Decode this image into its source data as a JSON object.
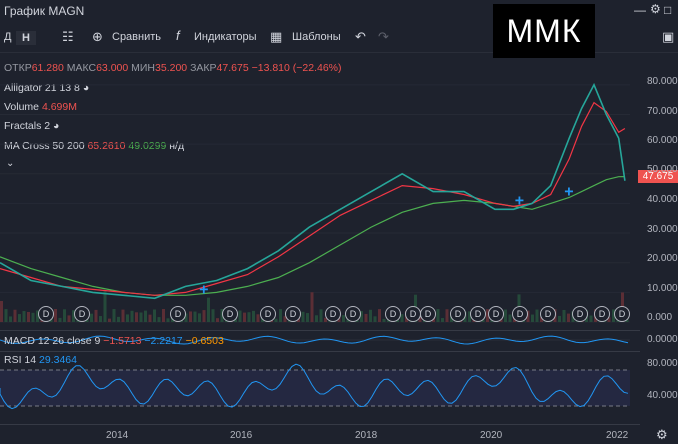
{
  "window": {
    "title": "График MAGN",
    "watermark": "ММК"
  },
  "toolbar": {
    "interval_day": "Д",
    "interval_hour": "Н",
    "compare": "Сравнить",
    "indicators": "Индикаторы",
    "templates": "Шаблоны"
  },
  "ohlc": {
    "open_label": "ОТКР",
    "open": "61.280",
    "high_label": "МАКС",
    "high": "63.000",
    "low_label": "МИН",
    "low": "35.200",
    "close_label": "ЗАКР",
    "close": "47.675",
    "change": "−13.810 (−22.46%)"
  },
  "indicators": {
    "alligator": "Alligator 21 13 8",
    "volume_label": "Volume",
    "volume": "4.699M",
    "fractals": "Fractals 2",
    "ma_cross": "MA Cross 50 200",
    "ma_fast": "65.2610",
    "ma_slow": "49.0299",
    "ma_na": "н/д",
    "macd_label": "MACD 12 26 close 9",
    "macd1": "−1.5713",
    "macd2": "−2.2217",
    "macd3": "−0.6503",
    "rsi_label": "RSI 14",
    "rsi": "29.3464"
  },
  "price_axis": {
    "current": "47.675",
    "ticks": [
      "80.000",
      "70.000",
      "60.000",
      "50.000",
      "40.000",
      "30.000",
      "20.000",
      "10.000",
      "0.000"
    ]
  },
  "macd_axis": {
    "tick": "0.0000"
  },
  "rsi_axis": {
    "ticks": [
      "80.0000",
      "40.0000"
    ]
  },
  "time_axis": {
    "ticks": [
      "2014",
      "2016",
      "2018",
      "2020",
      "2022"
    ]
  },
  "dividend_marker": "D",
  "colors": {
    "bg": "#1e222d",
    "up": "#4caf50",
    "down": "#ef5350",
    "ma_fast": "#f23645",
    "ma_slow": "#4caf50",
    "rsi": "#2196f3",
    "cross": "#2196f3"
  },
  "chart_data": {
    "type": "line",
    "title": "График MAGN",
    "x": [
      2012.0,
      2012.5,
      2013.0,
      2013.5,
      2014.0,
      2014.5,
      2015.0,
      2015.5,
      2016.0,
      2016.5,
      2017.0,
      2017.5,
      2018.0,
      2018.5,
      2019.0,
      2019.5,
      2020.0,
      2020.3,
      2020.6,
      2020.9,
      2021.2,
      2021.4,
      2021.6,
      2021.8,
      2022.0,
      2022.1
    ],
    "series": [
      {
        "name": "MAGN",
        "values": [
          20,
          14,
          12,
          10,
          9,
          8,
          12,
          14,
          18,
          24,
          32,
          38,
          44,
          50,
          44,
          44,
          38,
          38,
          40,
          46,
          62,
          72,
          80,
          70,
          62,
          47.675
        ]
      },
      {
        "name": "MA 50",
        "values": [
          18,
          15,
          12,
          11,
          10,
          9,
          10,
          13,
          16,
          22,
          29,
          36,
          41,
          46,
          45,
          43,
          40,
          39,
          40,
          43,
          55,
          66,
          74,
          71,
          64,
          65.261
        ]
      },
      {
        "name": "MA 200",
        "values": [
          22,
          18,
          15,
          12,
          10,
          9,
          9,
          10,
          12,
          15,
          20,
          26,
          32,
          37,
          40,
          41,
          40,
          39,
          38,
          40,
          42,
          44,
          46,
          48,
          49,
          49.03
        ]
      }
    ],
    "ylim": [
      0,
      85
    ]
  }
}
